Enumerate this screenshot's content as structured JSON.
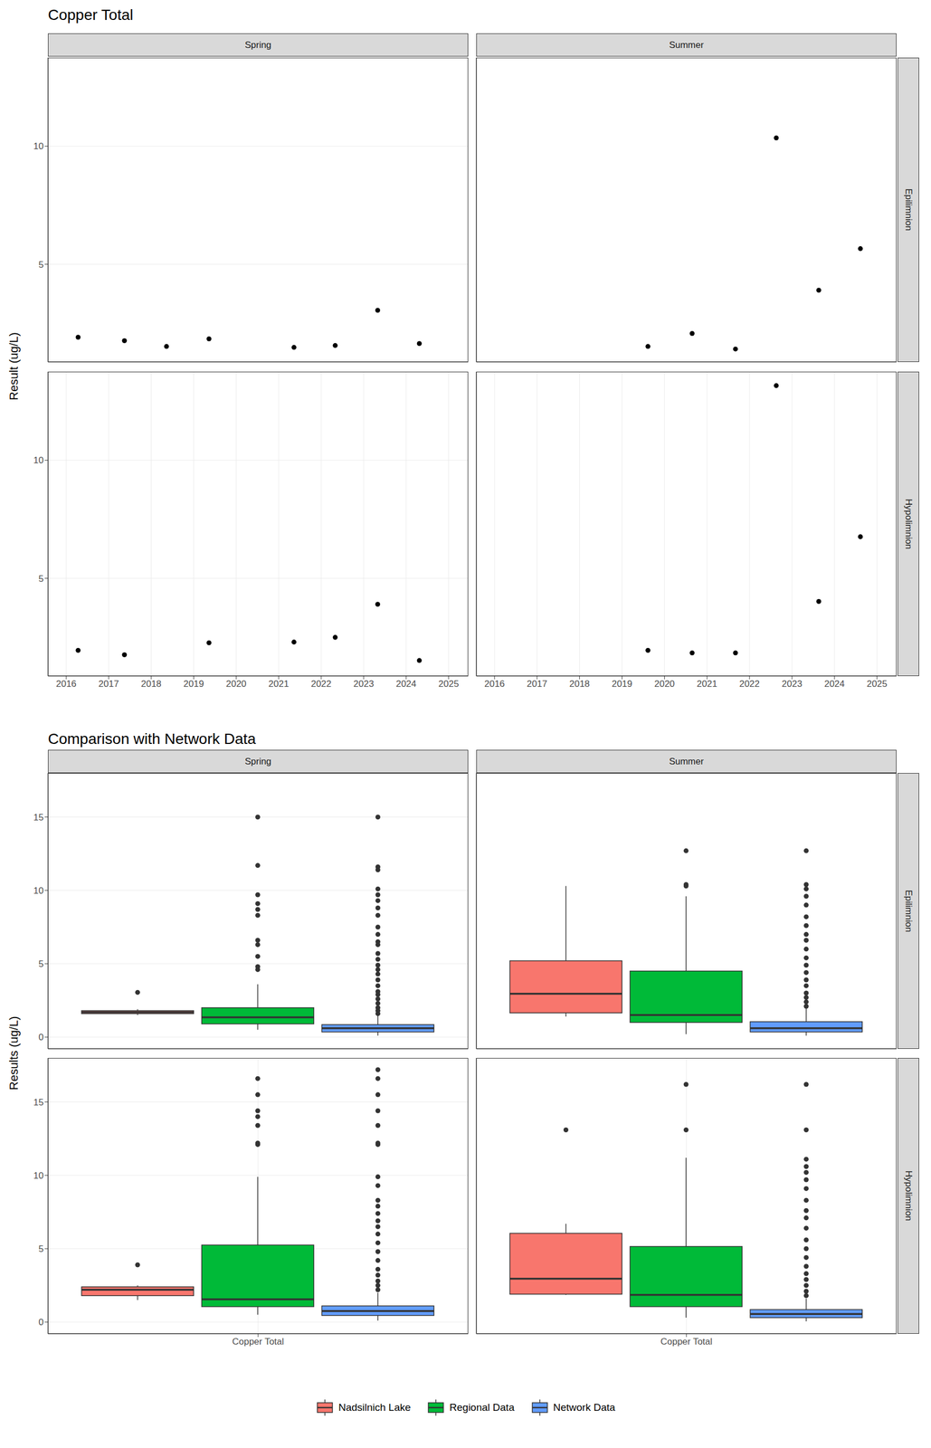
{
  "chart_data": [
    {
      "type": "scatter",
      "title": "Copper Total",
      "y_label": "Result (ug/L)",
      "xlim": [
        2015.57,
        2025.46
      ],
      "xticks": [
        2016,
        2017,
        2018,
        2019,
        2020,
        2021,
        2022,
        2023,
        2024,
        2025
      ],
      "ylim": [
        0.86,
        13.75
      ],
      "yticks": [
        5,
        10
      ],
      "grid": true,
      "color": "#000000",
      "marker": "circle",
      "columns": [
        "Spring",
        "Summer"
      ],
      "rows": [
        "Epilimnion",
        "Hypolimnion"
      ],
      "panels": [
        {
          "column": "Spring",
          "row": "Epilimnion",
          "x": [
            2016.28,
            2017.37,
            2018.36,
            2019.36,
            2021.36,
            2022.33,
            2023.33,
            2024.31
          ],
          "y": [
            1.91,
            1.76,
            1.52,
            1.84,
            1.48,
            1.56,
            3.05,
            1.64
          ]
        },
        {
          "column": "Summer",
          "row": "Epilimnion",
          "x": [
            2019.61,
            2020.65,
            2021.67,
            2022.63,
            2023.63,
            2024.61
          ],
          "y": [
            1.52,
            2.07,
            1.41,
            10.35,
            3.9,
            5.66
          ]
        },
        {
          "column": "Spring",
          "row": "Hypolimnion",
          "x": [
            2016.28,
            2017.37,
            2019.36,
            2021.36,
            2022.33,
            2023.33,
            2024.31
          ],
          "y": [
            1.95,
            1.76,
            2.27,
            2.3,
            2.5,
            3.9,
            1.52
          ]
        },
        {
          "column": "Summer",
          "row": "Hypolimnion",
          "x": [
            2019.61,
            2020.65,
            2021.67,
            2022.63,
            2023.63,
            2024.61
          ],
          "y": [
            1.95,
            1.84,
            1.84,
            13.16,
            4.02,
            6.76
          ]
        }
      ]
    },
    {
      "type": "boxplot",
      "title": "Comparison with Network Data",
      "y_label": "Results (ug/L)",
      "categories": [
        "Copper Total"
      ],
      "ylim": [
        -0.8,
        18
      ],
      "yticks": [
        0,
        5,
        10,
        15
      ],
      "grid": true,
      "legend": "bottom",
      "columns": [
        "Spring",
        "Summer"
      ],
      "rows": [
        "Epilimnion",
        "Hypolimnion"
      ],
      "series": [
        {
          "name": "Nadsilnich Lake",
          "color": "#F8766D"
        },
        {
          "name": "Regional Data",
          "color": "#00BA38"
        },
        {
          "name": "Network Data",
          "color": "#619CFF"
        }
      ],
      "panels": [
        {
          "column": "Spring",
          "row": "Epilimnion",
          "boxes": [
            {
              "min": 1.5,
              "q1": 1.6,
              "median": 1.7,
              "q3": 1.8,
              "max": 1.9,
              "outliers": [
                3.05
              ]
            },
            {
              "min": 0.5,
              "q1": 0.9,
              "median": 1.35,
              "q3": 2.0,
              "max": 3.6,
              "outliers": [
                4.6,
                4.8,
                5.5,
                6.3,
                6.6,
                8.3,
                8.7,
                9.1,
                9.7,
                11.7,
                15.0
              ]
            },
            {
              "min": 0.1,
              "q1": 0.35,
              "median": 0.6,
              "q3": 0.85,
              "max": 1.5,
              "outliers": [
                1.6,
                1.8,
                2.0,
                2.3,
                2.6,
                2.9,
                3.1,
                3.5,
                3.9,
                4.3,
                4.6,
                4.9,
                5.3,
                5.7,
                6.3,
                6.5,
                7.0,
                7.5,
                8.3,
                8.8,
                9.3,
                9.7,
                10.1,
                11.4,
                11.6,
                15.0
              ]
            }
          ]
        },
        {
          "column": "Summer",
          "row": "Epilimnion",
          "boxes": [
            {
              "min": 1.4,
              "q1": 1.65,
              "median": 2.95,
              "q3": 5.2,
              "max": 10.3,
              "outliers": []
            },
            {
              "min": 0.2,
              "q1": 1.0,
              "median": 1.5,
              "q3": 4.5,
              "max": 9.6,
              "outliers": [
                10.3,
                10.4,
                12.7
              ]
            },
            {
              "min": 0.1,
              "q1": 0.35,
              "median": 0.6,
              "q3": 1.05,
              "max": 2.0,
              "outliers": [
                2.1,
                2.4,
                2.7,
                3.0,
                3.5,
                3.9,
                4.4,
                4.9,
                5.4,
                6.0,
                6.6,
                7.0,
                7.6,
                8.2,
                9.0,
                9.6,
                10.1,
                10.4,
                12.7
              ]
            }
          ]
        },
        {
          "column": "Spring",
          "row": "Hypolimnion",
          "boxes": [
            {
              "min": 1.5,
              "q1": 1.8,
              "median": 2.2,
              "q3": 2.4,
              "max": 2.5,
              "outliers": [
                3.9
              ]
            },
            {
              "min": 0.5,
              "q1": 1.05,
              "median": 1.55,
              "q3": 5.25,
              "max": 9.9,
              "outliers": [
                12.1,
                12.2,
                13.4,
                14.0,
                14.4,
                15.5,
                16.6
              ]
            },
            {
              "min": 0.1,
              "q1": 0.45,
              "median": 0.75,
              "q3": 1.1,
              "max": 2.0,
              "outliers": [
                2.2,
                2.5,
                2.8,
                3.2,
                3.6,
                4.2,
                4.8,
                5.4,
                6.0,
                6.5,
                6.9,
                7.4,
                7.9,
                8.3,
                9.3,
                9.9,
                12.1,
                12.2,
                13.4,
                14.4,
                15.5,
                16.6,
                17.2
              ]
            }
          ]
        },
        {
          "column": "Summer",
          "row": "Hypolimnion",
          "boxes": [
            {
              "min": 1.85,
              "q1": 1.9,
              "median": 2.95,
              "q3": 6.05,
              "max": 6.7,
              "outliers": [
                13.1
              ]
            },
            {
              "min": 0.3,
              "q1": 1.05,
              "median": 1.85,
              "q3": 5.15,
              "max": 11.2,
              "outliers": [
                13.1,
                16.2
              ]
            },
            {
              "min": 0.05,
              "q1": 0.3,
              "median": 0.55,
              "q3": 0.85,
              "max": 1.6,
              "outliers": [
                1.8,
                2.1,
                2.5,
                2.9,
                3.3,
                3.8,
                4.4,
                5.0,
                5.6,
                6.4,
                7.1,
                7.6,
                8.3,
                9.1,
                9.7,
                10.2,
                10.6,
                11.1,
                13.1,
                16.2
              ]
            }
          ]
        }
      ]
    }
  ]
}
